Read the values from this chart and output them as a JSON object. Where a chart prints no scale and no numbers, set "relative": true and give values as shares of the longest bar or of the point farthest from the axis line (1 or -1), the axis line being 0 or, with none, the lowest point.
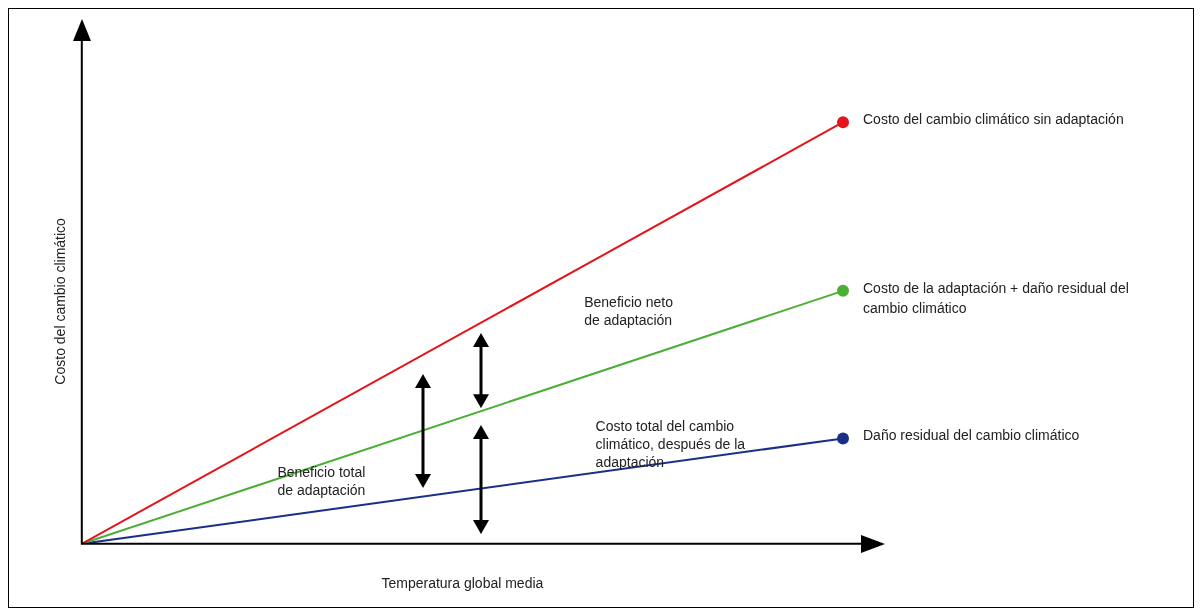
{
  "chart_data": {
    "type": "line",
    "relative": true,
    "xlabel": "Temperatura global media",
    "ylabel": "Costo del cambio climático",
    "categories": [
      null,
      null
    ],
    "marker": "circle",
    "legend": false,
    "grid": false,
    "series": [
      {
        "name": "Costo del cambio climático sin adaptación",
        "color": "#e3151a",
        "values": [
          0,
          1
        ]
      },
      {
        "name": "Costo de la adaptación + daño residual del cambio climático",
        "color": "#4caf35",
        "values": [
          0,
          0.6
        ]
      },
      {
        "name": "Daño residual del cambio climático",
        "color": "#1a2f8a",
        "values": [
          0,
          0.25
        ]
      }
    ],
    "annotations": [
      "Beneficio neto de adaptación",
      "Beneficio total de adaptación",
      "Costo total del cambio climático, después de la adaptación"
    ]
  }
}
